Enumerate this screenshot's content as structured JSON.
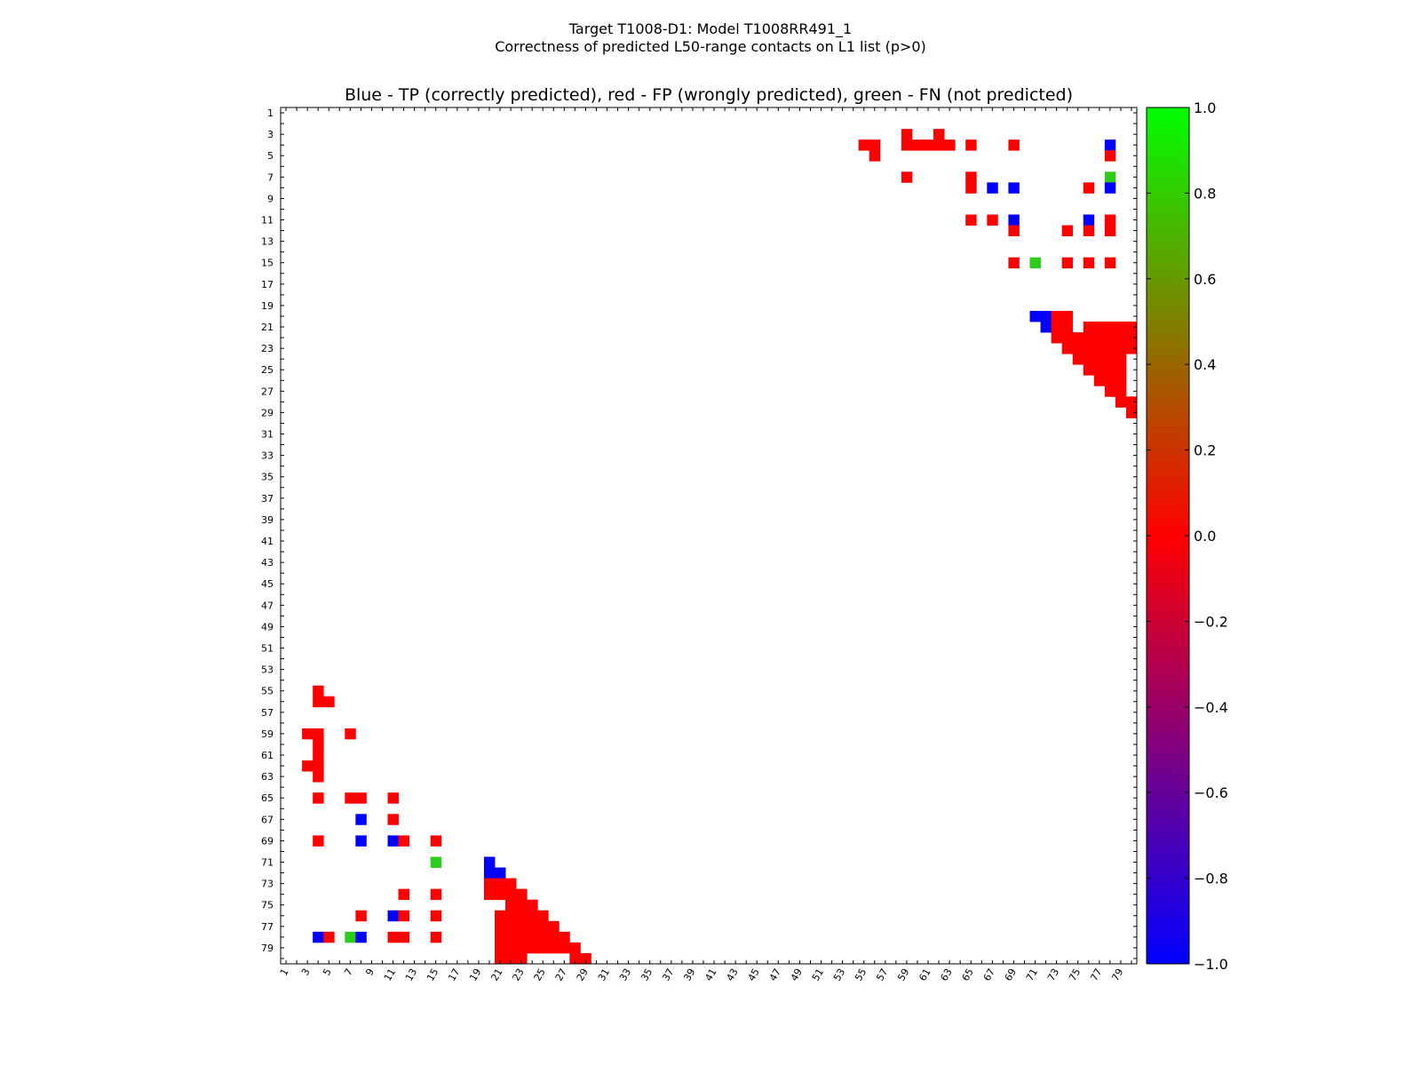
{
  "figure": {
    "title": "Target T1008-D1: Model T1008RR491_1",
    "subtitle": "Correctness of predicted L50-range contacts on L1 list (p>0)"
  },
  "chart_data": {
    "type": "heatmap",
    "title": "Blue - TP (correctly predicted), red - FP (wrongly predicted), green - FN (not predicted)",
    "xlabel": "",
    "ylabel": "",
    "residue_range": [
      1,
      80
    ],
    "x_tick_labels": [
      "1",
      "3",
      "5",
      "7",
      "9",
      "11",
      "13",
      "15",
      "17",
      "19",
      "21",
      "23",
      "25",
      "27",
      "29",
      "31",
      "33",
      "35",
      "37",
      "39",
      "41",
      "43",
      "45",
      "47",
      "49",
      "51",
      "53",
      "55",
      "57",
      "59",
      "61",
      "63",
      "65",
      "67",
      "69",
      "71",
      "73",
      "75",
      "77",
      "79"
    ],
    "y_tick_labels": [
      "1",
      "3",
      "5",
      "7",
      "9",
      "11",
      "13",
      "15",
      "17",
      "19",
      "21",
      "23",
      "25",
      "27",
      "29",
      "31",
      "33",
      "35",
      "37",
      "39",
      "41",
      "43",
      "45",
      "47",
      "49",
      "51",
      "53",
      "55",
      "57",
      "59",
      "61",
      "63",
      "65",
      "67",
      "69",
      "71",
      "73",
      "75",
      "77",
      "79"
    ],
    "cell_value_legend": {
      "-1": "TP (blue)",
      "0": "FP (red)",
      "1": "FN (green)"
    },
    "upper_triangle_cells": [
      [
        3,
        59,
        0
      ],
      [
        3,
        62,
        0
      ],
      [
        4,
        55,
        0
      ],
      [
        4,
        56,
        0
      ],
      [
        4,
        59,
        0
      ],
      [
        4,
        60,
        0
      ],
      [
        4,
        61,
        0
      ],
      [
        4,
        62,
        0
      ],
      [
        4,
        63,
        0
      ],
      [
        4,
        65,
        0
      ],
      [
        4,
        69,
        0
      ],
      [
        4,
        78,
        -1
      ],
      [
        5,
        56,
        0
      ],
      [
        5,
        78,
        0
      ],
      [
        7,
        59,
        0
      ],
      [
        7,
        65,
        0
      ],
      [
        7,
        78,
        1
      ],
      [
        8,
        65,
        0
      ],
      [
        8,
        67,
        -1
      ],
      [
        8,
        69,
        -1
      ],
      [
        8,
        76,
        0
      ],
      [
        8,
        78,
        -1
      ],
      [
        11,
        65,
        0
      ],
      [
        11,
        67,
        0
      ],
      [
        11,
        69,
        -1
      ],
      [
        11,
        76,
        -1
      ],
      [
        11,
        78,
        0
      ],
      [
        12,
        69,
        0
      ],
      [
        12,
        74,
        0
      ],
      [
        12,
        76,
        0
      ],
      [
        12,
        78,
        0
      ],
      [
        15,
        69,
        0
      ],
      [
        15,
        71,
        1
      ],
      [
        15,
        74,
        0
      ],
      [
        15,
        76,
        0
      ],
      [
        15,
        78,
        0
      ],
      [
        20,
        71,
        -1
      ],
      [
        20,
        72,
        -1
      ],
      [
        20,
        73,
        0
      ],
      [
        20,
        74,
        0
      ],
      [
        21,
        72,
        -1
      ],
      [
        21,
        73,
        0
      ],
      [
        21,
        74,
        0
      ],
      [
        21,
        76,
        0
      ],
      [
        21,
        77,
        0
      ],
      [
        21,
        78,
        0
      ],
      [
        21,
        79,
        0
      ],
      [
        21,
        80,
        0
      ],
      [
        22,
        73,
        0
      ],
      [
        22,
        74,
        0
      ],
      [
        22,
        75,
        0
      ],
      [
        22,
        76,
        0
      ],
      [
        22,
        77,
        0
      ],
      [
        22,
        78,
        0
      ],
      [
        22,
        79,
        0
      ],
      [
        22,
        80,
        0
      ],
      [
        23,
        74,
        0
      ],
      [
        23,
        75,
        0
      ],
      [
        23,
        76,
        0
      ],
      [
        23,
        77,
        0
      ],
      [
        23,
        78,
        0
      ],
      [
        23,
        79,
        0
      ],
      [
        23,
        80,
        0
      ],
      [
        24,
        75,
        0
      ],
      [
        24,
        76,
        0
      ],
      [
        24,
        77,
        0
      ],
      [
        24,
        78,
        0
      ],
      [
        24,
        79,
        0
      ],
      [
        25,
        76,
        0
      ],
      [
        25,
        77,
        0
      ],
      [
        25,
        78,
        0
      ],
      [
        25,
        79,
        0
      ],
      [
        26,
        77,
        0
      ],
      [
        26,
        78,
        0
      ],
      [
        26,
        79,
        0
      ],
      [
        27,
        78,
        0
      ],
      [
        27,
        79,
        0
      ],
      [
        28,
        79,
        0
      ],
      [
        28,
        80,
        0
      ],
      [
        29,
        80,
        0
      ]
    ],
    "colorbar": {
      "range": [
        -1.0,
        1.0
      ],
      "colormap": "brg",
      "tick_values": [
        -1.0,
        -0.8,
        -0.6,
        -0.4,
        -0.2,
        0.0,
        0.2,
        0.4,
        0.6,
        0.8,
        1.0
      ],
      "tick_labels": [
        "−1.0",
        "−0.8",
        "−0.6",
        "−0.4",
        "−0.2",
        "0.0",
        "0.2",
        "0.4",
        "0.6",
        "0.8",
        "1.0"
      ]
    },
    "colors": {
      "tp": "#0000ff",
      "fp": "#ff0000",
      "fn": "#2ecc1a"
    },
    "grid": false,
    "legend_position": "colorbar-right"
  }
}
